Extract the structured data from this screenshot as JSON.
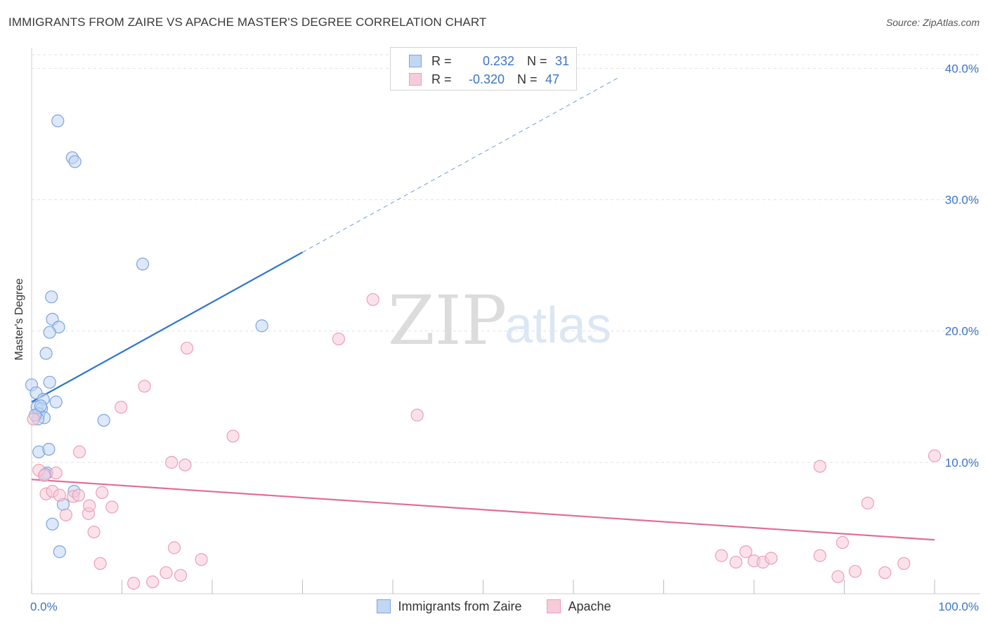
{
  "chart_data": {
    "type": "scatter",
    "title": "IMMIGRANTS FROM ZAIRE VS APACHE MASTER'S DEGREE CORRELATION CHART",
    "source": "Source: ZipAtlas.com",
    "xlabel": "",
    "ylabel": "Master's Degree",
    "xlim": [
      0,
      100
    ],
    "ylim": [
      0,
      42
    ],
    "x_ticks": [
      0,
      10,
      20,
      30,
      40,
      50,
      60,
      70,
      80,
      90,
      100
    ],
    "x_tick_labels": [
      "0.0%",
      "100.0%"
    ],
    "y_ticks": [
      10,
      20,
      30,
      40
    ],
    "y_tick_labels": [
      "10.0%",
      "20.0%",
      "30.0%",
      "40.0%"
    ],
    "grid": true,
    "watermark": [
      "ZIP",
      "atlas"
    ],
    "legend": [
      {
        "r_label": "R =",
        "r": "0.232",
        "n_label": "N =",
        "n": "31"
      },
      {
        "r_label": "R =",
        "r": "-0.320",
        "n_label": "N =",
        "n": "47"
      }
    ],
    "series": [
      {
        "name": "Immigrants from Zaire",
        "color": "#7aa6e0",
        "fill": "#c3d6f2",
        "trend_color": "#2d74d0",
        "trend": {
          "x0": 0,
          "y0": 14.6,
          "x1": 30,
          "y1": 26.0,
          "dash_to_x": 65,
          "dash_to_y": 39.3
        },
        "points": [
          [
            2.9,
            36.0
          ],
          [
            4.5,
            33.2
          ],
          [
            4.8,
            32.9
          ],
          [
            12.3,
            25.1
          ],
          [
            2.2,
            22.6
          ],
          [
            2.3,
            20.9
          ],
          [
            3.0,
            20.3
          ],
          [
            2.0,
            19.9
          ],
          [
            1.6,
            18.3
          ],
          [
            25.5,
            20.4
          ],
          [
            0.0,
            15.9
          ],
          [
            2.0,
            16.1
          ],
          [
            0.5,
            15.3
          ],
          [
            1.3,
            14.8
          ],
          [
            2.7,
            14.6
          ],
          [
            0.6,
            14.2
          ],
          [
            1.1,
            14.1
          ],
          [
            0.8,
            13.7
          ],
          [
            1.4,
            13.4
          ],
          [
            0.7,
            13.3
          ],
          [
            8.0,
            13.2
          ],
          [
            0.8,
            10.8
          ],
          [
            1.9,
            11.0
          ],
          [
            1.7,
            9.2
          ],
          [
            1.5,
            9.1
          ],
          [
            4.7,
            7.8
          ],
          [
            3.5,
            6.8
          ],
          [
            2.3,
            5.3
          ],
          [
            3.1,
            3.2
          ],
          [
            0.4,
            13.6
          ],
          [
            1.0,
            14.3
          ]
        ]
      },
      {
        "name": "Apache",
        "color": "#ec9fb6",
        "fill": "#f7cbd8",
        "trend_color": "#e06e98",
        "trend": {
          "x0": 0,
          "y0": 8.7,
          "x1": 100,
          "y1": 4.1
        },
        "points": [
          [
            0.2,
            13.3
          ],
          [
            0.8,
            9.4
          ],
          [
            1.4,
            9.0
          ],
          [
            2.7,
            9.2
          ],
          [
            1.6,
            7.6
          ],
          [
            2.3,
            7.8
          ],
          [
            3.1,
            7.5
          ],
          [
            4.6,
            7.4
          ],
          [
            5.2,
            7.5
          ],
          [
            7.8,
            7.7
          ],
          [
            3.8,
            6.0
          ],
          [
            6.3,
            6.1
          ],
          [
            6.4,
            6.7
          ],
          [
            8.9,
            6.6
          ],
          [
            5.3,
            10.8
          ],
          [
            9.9,
            14.2
          ],
          [
            12.5,
            15.8
          ],
          [
            15.5,
            10.0
          ],
          [
            17.0,
            9.8
          ],
          [
            17.2,
            18.7
          ],
          [
            22.3,
            12.0
          ],
          [
            37.8,
            22.4
          ],
          [
            34.0,
            19.4
          ],
          [
            42.7,
            13.6
          ],
          [
            6.9,
            4.7
          ],
          [
            7.6,
            2.3
          ],
          [
            15.8,
            3.5
          ],
          [
            18.8,
            2.6
          ],
          [
            14.9,
            1.6
          ],
          [
            16.5,
            1.4
          ],
          [
            11.3,
            0.8
          ],
          [
            13.4,
            0.9
          ],
          [
            76.4,
            2.9
          ],
          [
            78.0,
            2.4
          ],
          [
            79.1,
            3.2
          ],
          [
            80.0,
            2.5
          ],
          [
            81.0,
            2.4
          ],
          [
            81.9,
            2.7
          ],
          [
            87.3,
            2.9
          ],
          [
            87.3,
            9.7
          ],
          [
            89.3,
            1.3
          ],
          [
            91.2,
            1.7
          ],
          [
            89.8,
            3.9
          ],
          [
            92.6,
            6.9
          ],
          [
            94.5,
            1.6
          ],
          [
            96.6,
            2.3
          ],
          [
            100.0,
            10.5
          ]
        ]
      }
    ]
  }
}
